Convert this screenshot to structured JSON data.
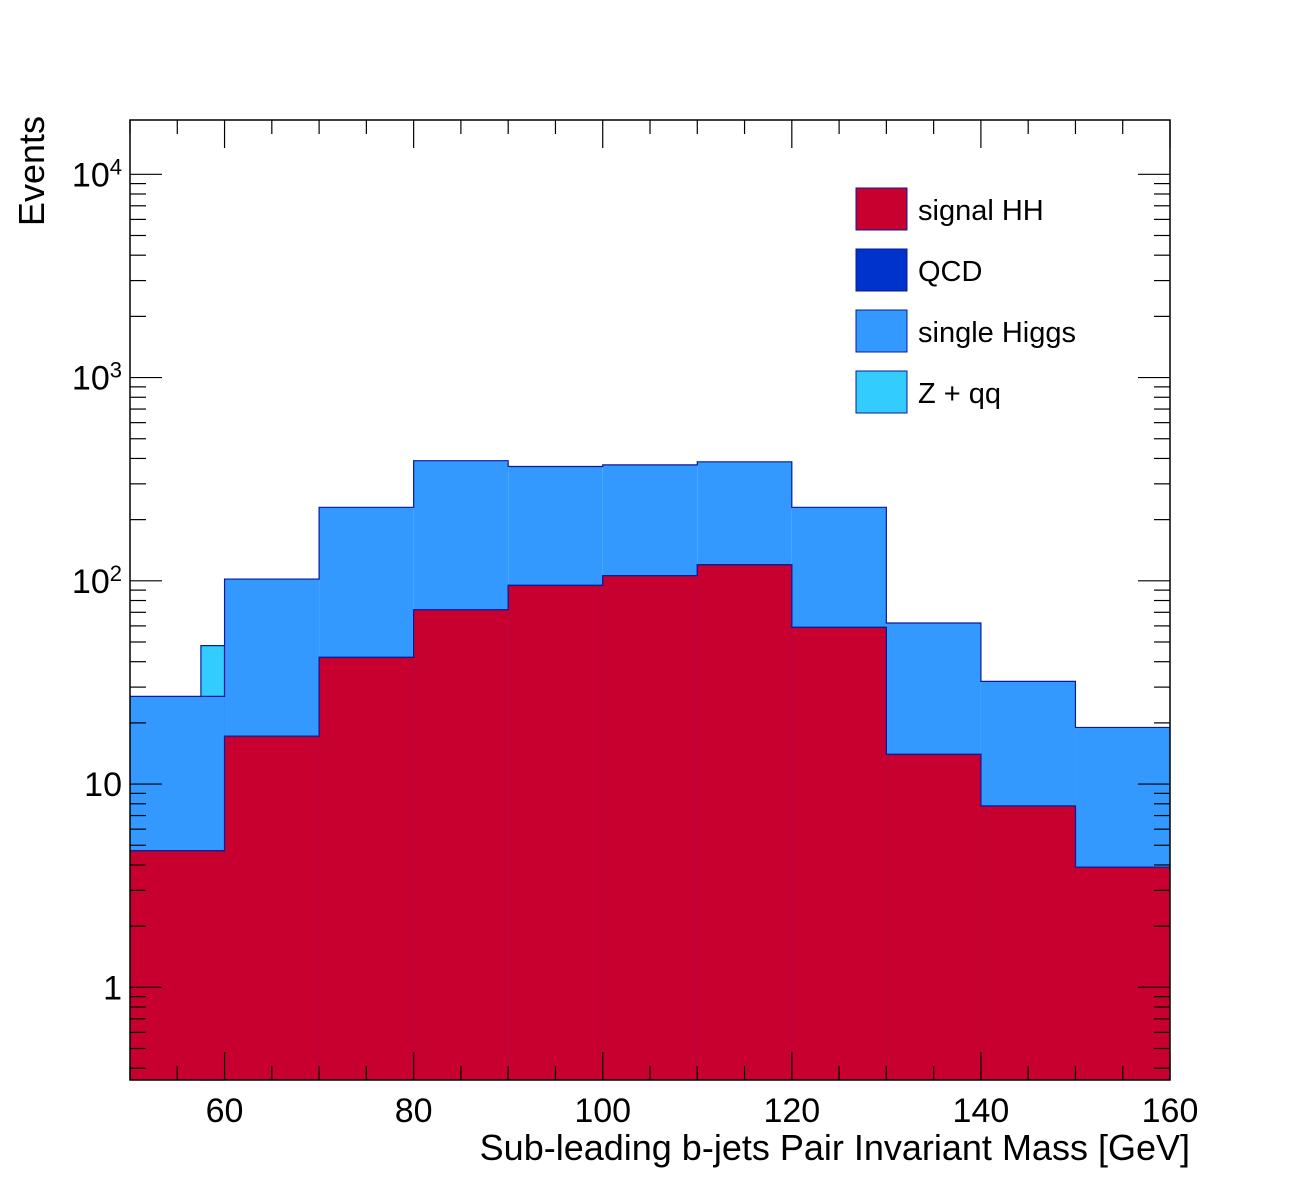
{
  "chart_data": {
    "type": "bar",
    "stacked": true,
    "log_y": true,
    "xlabel": "Sub-leading b-jets Pair Invariant Mass [GeV]",
    "ylabel": "Events",
    "xlim": [
      50,
      160
    ],
    "ylim": [
      0.35,
      18500
    ],
    "bin_edges": [
      50,
      60,
      70,
      80,
      90,
      100,
      110,
      120,
      130,
      140,
      150,
      160
    ],
    "x_ticks": [
      {
        "value": 60,
        "label": "60"
      },
      {
        "value": 80,
        "label": "80"
      },
      {
        "value": 100,
        "label": "100"
      },
      {
        "value": 120,
        "label": "120"
      },
      {
        "value": 140,
        "label": "140"
      },
      {
        "value": 160,
        "label": "160"
      }
    ],
    "y_ticks": [
      {
        "value": 1,
        "base": "1",
        "exp": ""
      },
      {
        "value": 10,
        "base": "10",
        "exp": ""
      },
      {
        "value": 100,
        "base": "10",
        "exp": "2"
      },
      {
        "value": 1000,
        "base": "10",
        "exp": "3"
      },
      {
        "value": 10000,
        "base": "10",
        "exp": "4"
      }
    ],
    "grid": false,
    "legend_position": "top-right",
    "series": [
      {
        "name": "signal HH",
        "color": "#c8002f",
        "stack_top": [
          4.7,
          17.2,
          42,
          72,
          95,
          106,
          120,
          59,
          14,
          7.8,
          3.9
        ]
      },
      {
        "name": "QCD",
        "color": "#0033cc",
        "stack_top": [
          4.7,
          17.2,
          42,
          72,
          95,
          106,
          120,
          59,
          14,
          7.8,
          3.9
        ]
      },
      {
        "name": "single Higgs",
        "color": "#3399ff",
        "stack_top": [
          27,
          102,
          230,
          390,
          365,
          372,
          385,
          230,
          62,
          32,
          19
        ]
      },
      {
        "name": "Z + qq",
        "color": "#33ccff",
        "stack_top": [
          null,
          null,
          null,
          null,
          null,
          null,
          null,
          null,
          null,
          null,
          null
        ],
        "spike": {
          "x_from": 57.5,
          "x_to": 60,
          "top": 48
        }
      }
    ]
  }
}
